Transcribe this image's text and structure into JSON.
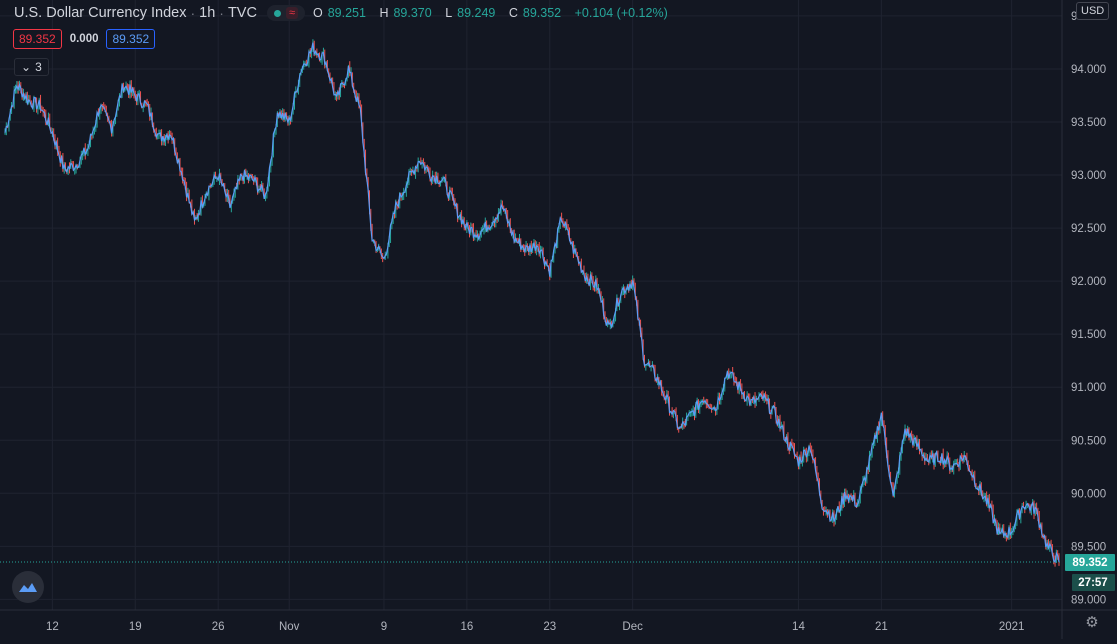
{
  "legend": {
    "symbol": "U.S. Dollar Currency Index",
    "interval": "1h",
    "exchange": "TVC",
    "ohlc": {
      "o_label": "O",
      "o": "89.251",
      "h_label": "H",
      "h": "89.370",
      "l_label": "L",
      "l": "89.249",
      "c_label": "C",
      "c": "89.352",
      "change": "+0.104 (+0.12%)"
    }
  },
  "boxes": {
    "bid": "89.352",
    "spread": "0.000",
    "ask": "89.352"
  },
  "collapse_count": "3",
  "currency": "USD",
  "price_label": "89.352",
  "countdown": "27:57",
  "colors": {
    "up": "#26a69a",
    "down": "#ef5350",
    "background": "#131722",
    "grid": "#1f2330",
    "accent_line": "#5b9cf6"
  },
  "icons": {
    "logo": "tradingview-logo-icon",
    "settings": "gear-icon",
    "collapse": "chevron-down-icon",
    "live": "live-dot-icon",
    "wave": "wave-icon"
  },
  "chart_data": {
    "type": "line",
    "description_series": "hourly close, line-with-candles style",
    "ylim": [
      88.9,
      94.65
    ],
    "yticks": [
      89.0,
      89.5,
      90.0,
      90.5,
      91.0,
      91.5,
      92.0,
      92.5,
      93.0,
      93.5,
      94.0,
      94.5
    ],
    "ytick_labels": [
      "89.000",
      "89.500",
      "90.000",
      "90.500",
      "91.000",
      "91.500",
      "92.000",
      "92.500",
      "93.000",
      "93.500",
      "94.000",
      "94.500"
    ],
    "xlim": [
      "Oct 8",
      "Jan 6"
    ],
    "xticks": [
      {
        "label": "12",
        "day": 4
      },
      {
        "label": "19",
        "day": 11
      },
      {
        "label": "26",
        "day": 18
      },
      {
        "label": "Nov",
        "day": 24
      },
      {
        "label": "9",
        "day": 32
      },
      {
        "label": "16",
        "day": 39
      },
      {
        "label": "23",
        "day": 46
      },
      {
        "label": "Dec",
        "day": 53
      },
      {
        "label": "14",
        "day": 67
      },
      {
        "label": "21",
        "day": 74
      },
      {
        "label": "2021",
        "day": 85
      }
    ],
    "grid": true,
    "last_value": 89.352,
    "x": [
      0,
      1,
      2,
      3,
      4,
      5,
      6,
      7,
      8,
      9,
      10,
      11,
      12,
      13,
      14,
      15,
      16,
      17,
      18,
      19,
      20,
      21,
      22,
      23,
      24,
      25,
      26,
      27,
      28,
      29,
      30,
      31,
      32,
      33,
      34,
      35,
      36,
      37,
      38,
      39,
      40,
      41,
      42,
      43,
      44,
      45,
      46,
      47,
      48,
      49,
      50,
      51,
      52,
      53,
      54,
      55,
      56,
      57,
      58,
      59,
      60,
      61,
      62,
      63,
      64,
      65,
      66,
      67,
      68,
      69,
      70,
      71,
      72,
      73,
      74,
      75,
      76,
      77,
      78,
      79,
      80,
      81,
      82,
      83,
      84,
      85,
      86,
      87,
      88,
      89
    ],
    "values": [
      93.4,
      93.85,
      93.7,
      93.65,
      93.4,
      93.05,
      93.1,
      93.25,
      93.65,
      93.45,
      93.85,
      93.75,
      93.65,
      93.35,
      93.4,
      93.0,
      92.55,
      92.85,
      93.0,
      92.7,
      93.0,
      92.95,
      92.8,
      93.6,
      93.5,
      94.0,
      94.2,
      94.1,
      93.7,
      94.0,
      93.6,
      92.4,
      92.2,
      92.7,
      92.95,
      93.15,
      93.0,
      92.95,
      92.7,
      92.5,
      92.45,
      92.55,
      92.7,
      92.4,
      92.3,
      92.35,
      92.1,
      92.6,
      92.3,
      92.05,
      91.95,
      91.55,
      91.9,
      92.0,
      91.25,
      91.1,
      90.85,
      90.6,
      90.75,
      90.9,
      90.8,
      91.15,
      91.0,
      90.85,
      90.9,
      90.75,
      90.5,
      90.3,
      90.45,
      89.9,
      89.75,
      90.0,
      89.9,
      90.3,
      90.75,
      89.95,
      90.6,
      90.45,
      90.3,
      90.35,
      90.25,
      90.35,
      90.1,
      89.9,
      89.6,
      89.65,
      89.9,
      89.85,
      89.5,
      89.352
    ]
  }
}
